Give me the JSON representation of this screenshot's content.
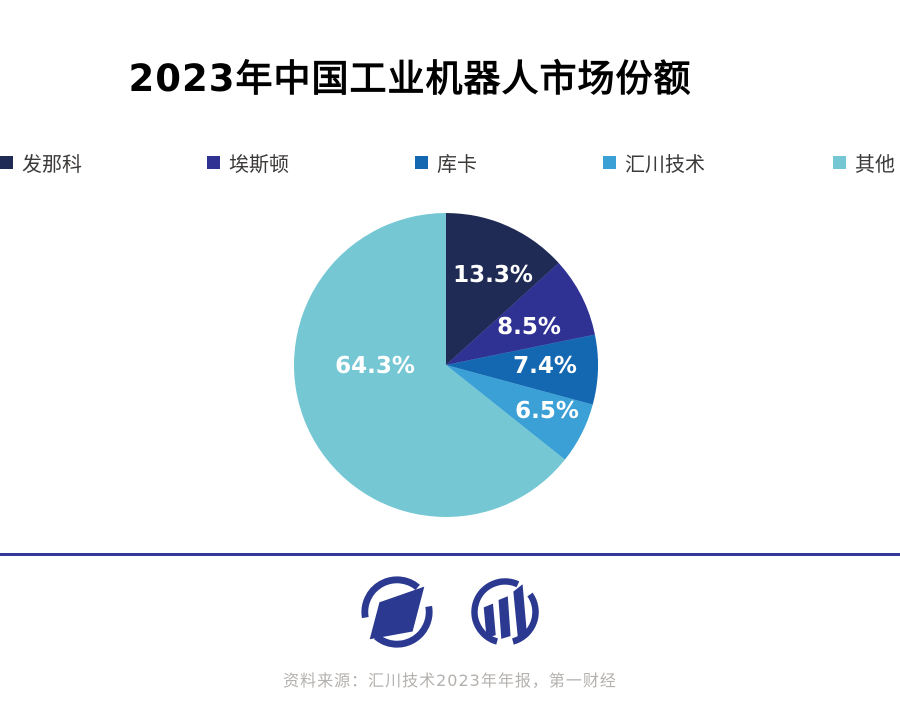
{
  "title": "2023年中国工业机器人市场份额",
  "legend": {
    "items": [
      {
        "label": "发那科",
        "color": "#1f2b55"
      },
      {
        "label": "埃斯顿",
        "color": "#2f3193"
      },
      {
        "label": "库卡",
        "color": "#1368b1"
      },
      {
        "label": "汇川技术",
        "color": "#3aa0d5"
      },
      {
        "label": "其他",
        "color": "#74c7d3"
      }
    ]
  },
  "chart_data": {
    "type": "pie",
    "title": "2023年中国工业机器人市场份额",
    "categories": [
      "发那科",
      "埃斯顿",
      "库卡",
      "汇川技术",
      "其他"
    ],
    "values": [
      13.3,
      8.5,
      7.4,
      6.5,
      64.3
    ],
    "display_labels": [
      "13.3%",
      "8.5%",
      "7.4%",
      "6.5%",
      "64.3%"
    ],
    "colors": [
      "#1f2b55",
      "#2f3193",
      "#1368b1",
      "#3aa0d5",
      "#74c7d3"
    ],
    "unit": "%",
    "start_angle_deg": 0,
    "direction": "clockwise",
    "legend_position": "top",
    "label_text_color": "#ffffff"
  },
  "footer": {
    "source": "资料来源：汇川技术2023年年报，第一财经",
    "divider_color": "#34389b",
    "logo_color": "#2b3990"
  }
}
